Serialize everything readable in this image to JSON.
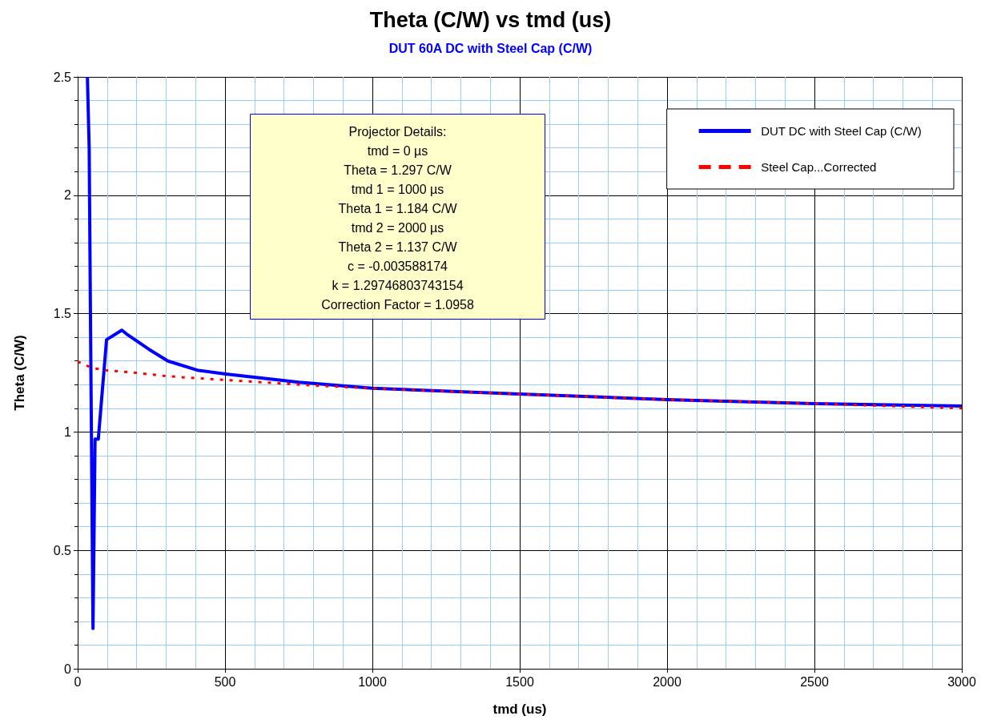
{
  "chart_data": {
    "type": "line",
    "title": "Theta (C/W) vs tmd (us)",
    "subtitle": "DUT 60A DC with Steel Cap (C/W)",
    "xlabel": "tmd (us)",
    "ylabel": "Theta (C/W)",
    "xlim": [
      0,
      3000
    ],
    "xticks": [
      0,
      {
        "value": 100,
        "label": null
      },
      {
        "value": 200,
        "label": null
      },
      {
        "value": 300,
        "label": null
      },
      {
        "value": 400,
        "label": null
      },
      500,
      {
        "value": 600,
        "label": null
      },
      {
        "value": 700,
        "label": null
      },
      {
        "value": 800,
        "label": null
      },
      {
        "value": 900,
        "label": null
      },
      1000,
      {
        "value": 1100,
        "label": null
      },
      {
        "value": 1200,
        "label": null
      },
      {
        "value": 1300,
        "label": null
      },
      {
        "value": 1400,
        "label": null
      },
      1500,
      {
        "value": 1600,
        "label": null
      },
      {
        "value": 1700,
        "label": null
      },
      {
        "value": 1800,
        "label": null
      },
      {
        "value": 1900,
        "label": null
      },
      2000,
      {
        "value": 2100,
        "label": null
      },
      {
        "value": 2200,
        "label": null
      },
      {
        "value": 2300,
        "label": null
      },
      {
        "value": 2400,
        "label": null
      },
      2500,
      {
        "value": 2600,
        "label": null
      },
      {
        "value": 2700,
        "label": null
      },
      {
        "value": 2800,
        "label": null
      },
      {
        "value": 2900,
        "label": null
      },
      3000
    ],
    "ylim": [
      0,
      2.5
    ],
    "yticks": [
      0,
      {
        "value": 0.1,
        "label": null
      },
      {
        "value": 0.2,
        "label": null
      },
      {
        "value": 0.3,
        "label": null
      },
      {
        "value": 0.4,
        "label": null
      },
      0.5,
      {
        "value": 0.6,
        "label": null
      },
      {
        "value": 0.7,
        "label": null
      },
      {
        "value": 0.8,
        "label": null
      },
      {
        "value": 0.9,
        "label": null
      },
      1,
      {
        "value": 1.1,
        "label": null
      },
      {
        "value": 1.2,
        "label": null
      },
      {
        "value": 1.3,
        "label": null
      },
      {
        "value": 1.4,
        "label": null
      },
      1.5,
      {
        "value": 1.6,
        "label": null
      },
      {
        "value": 1.7,
        "label": null
      },
      {
        "value": 1.8,
        "label": null
      },
      {
        "value": 1.9,
        "label": null
      },
      2,
      {
        "value": 2.1,
        "label": null
      },
      {
        "value": 2.2,
        "label": null
      },
      {
        "value": 2.3,
        "label": null
      },
      {
        "value": 2.4,
        "label": null
      },
      2.5
    ],
    "grid": true,
    "legend": "top right",
    "marker": "none",
    "annotations": [
      "Projector Details:\ntmd = 0 µs\nTheta = 1.297 C/W\ntmd 1 = 1000 µs\nTheta 1 = 1.184 C/W\ntmd 2 = 2000 µs\nTheta 2 = 1.137 C/W\nc = -0.003588174\nk = 1.29746803743154\nCorrection Factor = 1.0958"
    ],
    "series": [
      {
        "name": "DUT DC with Steel Cap (C/W)",
        "color": "#0000ff",
        "line_style": "solid",
        "x": [
          33,
          39,
          43,
          52,
          59,
          70,
          98,
          150,
          170,
          241,
          306,
          410,
          502,
          750,
          1000,
          1500,
          2000,
          2500,
          3000
        ],
        "values": [
          2.5,
          2.2,
          1.55,
          0.17,
          0.97,
          0.97,
          1.39,
          1.43,
          1.41,
          1.35,
          1.3,
          1.26,
          1.245,
          1.21,
          1.185,
          1.16,
          1.137,
          1.12,
          1.11
        ]
      },
      {
        "name": "Steel Cap...Corrected",
        "color": "#ff0000",
        "line_style": "dashed",
        "x": [
          0,
          50,
          100,
          200,
          300,
          500,
          750,
          1000,
          1500,
          2000,
          2500,
          3000
        ],
        "values": [
          1.297,
          1.27,
          1.26,
          1.25,
          1.236,
          1.22,
          1.2,
          1.184,
          1.16,
          1.137,
          1.12,
          1.1
        ]
      }
    ]
  }
}
